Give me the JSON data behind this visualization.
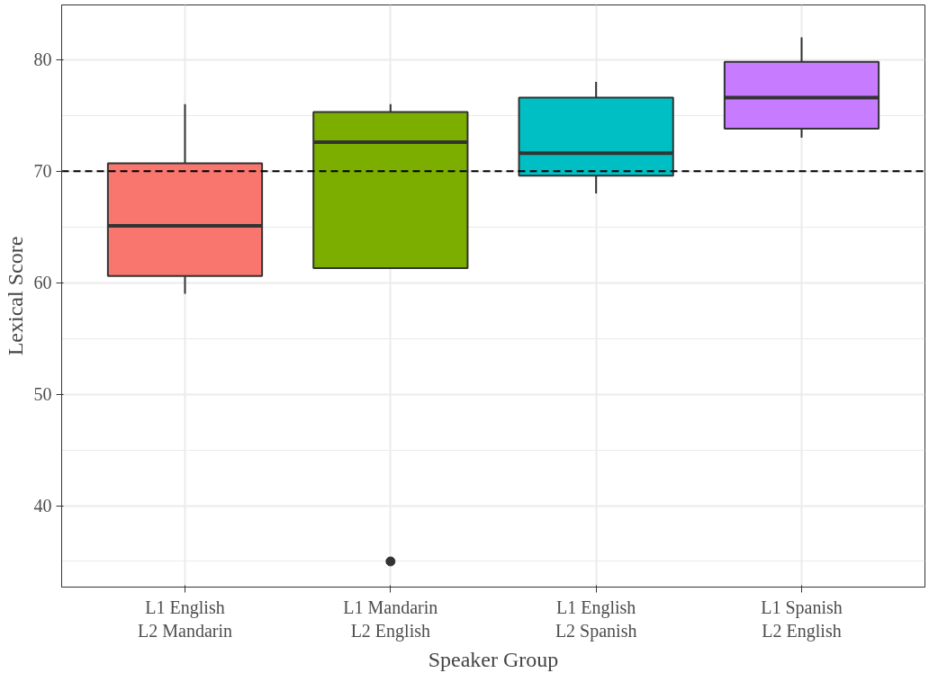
{
  "chart_data": {
    "type": "box",
    "xlabel": "Speaker Group",
    "ylabel": "Lexical Score",
    "categories": [
      "L1 English\nL2 Mandarin",
      "L1 Mandarin\nL2 English",
      "L1 English\nL2 Spanish",
      "L1 Spanish\nL2 English"
    ],
    "colors": [
      "#f8766d",
      "#7cae00",
      "#00bfc4",
      "#c77cff"
    ],
    "boxes": [
      {
        "low": 59,
        "q1": 60.6,
        "median": 65.1,
        "q3": 70.7,
        "high": 76
      },
      {
        "low": 61.3,
        "q1": 61.3,
        "median": 72.6,
        "q3": 75.3,
        "high": 76,
        "outliers": [
          35
        ]
      },
      {
        "low": 68,
        "q1": 69.6,
        "median": 71.6,
        "q3": 76.6,
        "high": 78
      },
      {
        "low": 73,
        "q1": 73.8,
        "median": 76.6,
        "q3": 79.8,
        "high": 82
      }
    ],
    "ylim": [
      32.7,
      84.9
    ],
    "yticks": [
      40,
      50,
      60,
      70,
      80
    ],
    "grid": true,
    "ref_lines": [
      {
        "axis": "y",
        "value": 70,
        "line_style": "dashed",
        "color": "#000000"
      }
    ]
  }
}
